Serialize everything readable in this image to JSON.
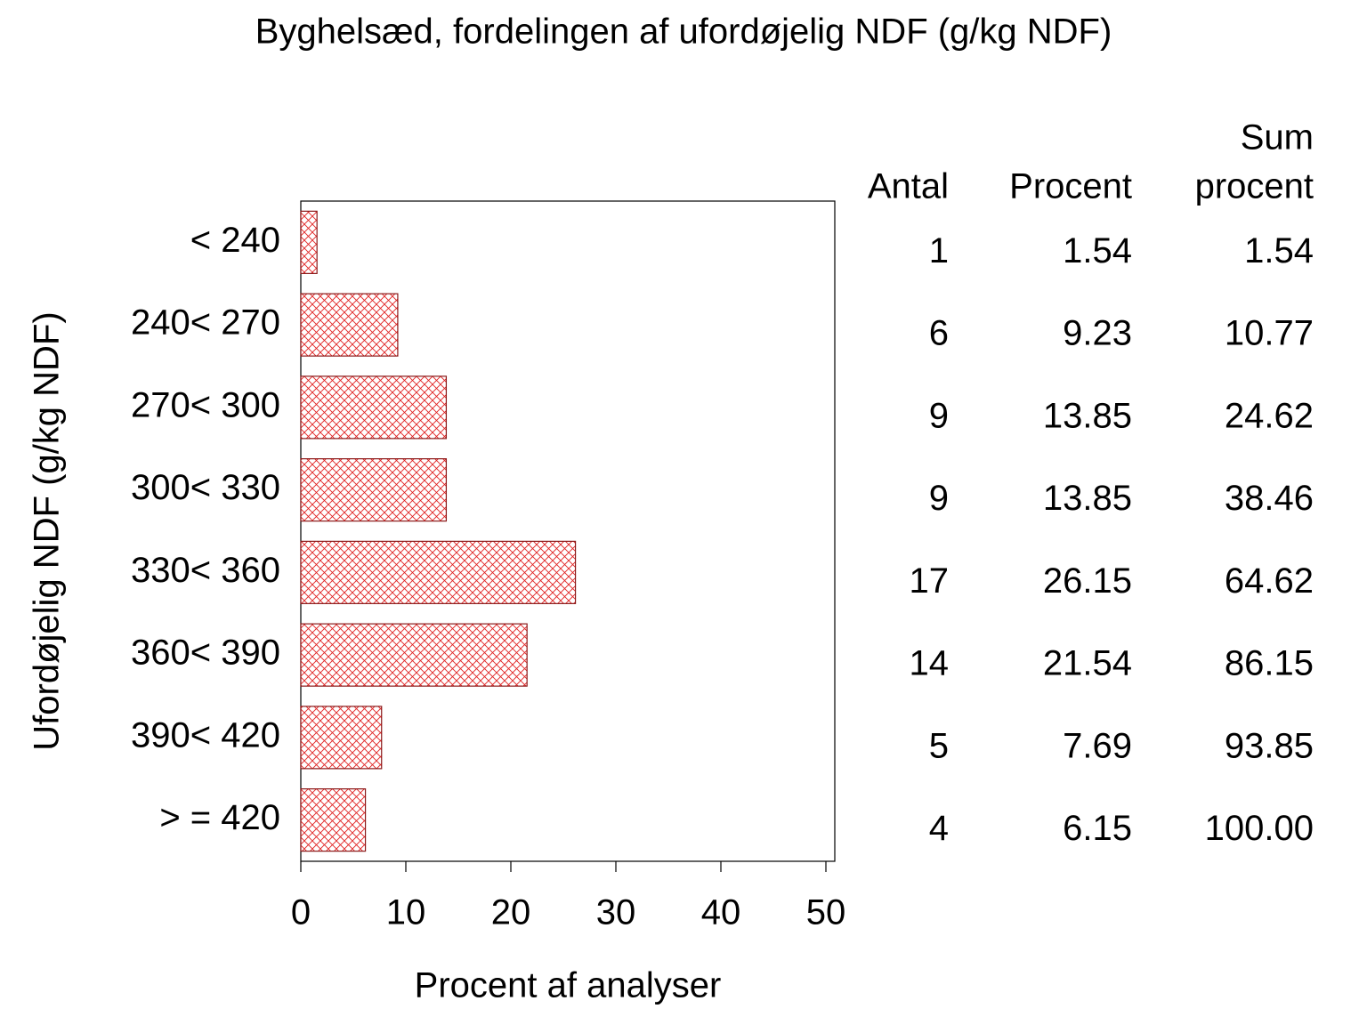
{
  "chart_data": {
    "type": "bar",
    "orientation": "horizontal",
    "title": "Byghelsæd, fordelingen af ufordøjelig NDF (g/kg NDF)",
    "x_label": "Procent af analyser",
    "y_label": "Ufordøjelig NDF (g/kg NDF)",
    "categories": [
      "< 240",
      "240< 270",
      "270< 300",
      "300< 330",
      "330< 360",
      "360< 390",
      "390< 420",
      "> = 420"
    ],
    "values": [
      1.54,
      9.23,
      13.85,
      13.85,
      26.15,
      21.54,
      7.69,
      6.15
    ],
    "color": "#e02020",
    "xlim": [
      0,
      50
    ],
    "xticks": [
      0,
      10,
      20,
      30,
      40,
      50
    ],
    "table": {
      "headers": [
        [
          "Antal"
        ],
        [
          "Procent"
        ],
        [
          "Sum",
          "procent"
        ]
      ],
      "counts": [
        1,
        6,
        9,
        9,
        17,
        14,
        5,
        4
      ],
      "cumulative": [
        "1.54",
        "10.77",
        "24.62",
        "38.46",
        "64.62",
        "86.15",
        "93.85",
        "100.00"
      ]
    }
  }
}
